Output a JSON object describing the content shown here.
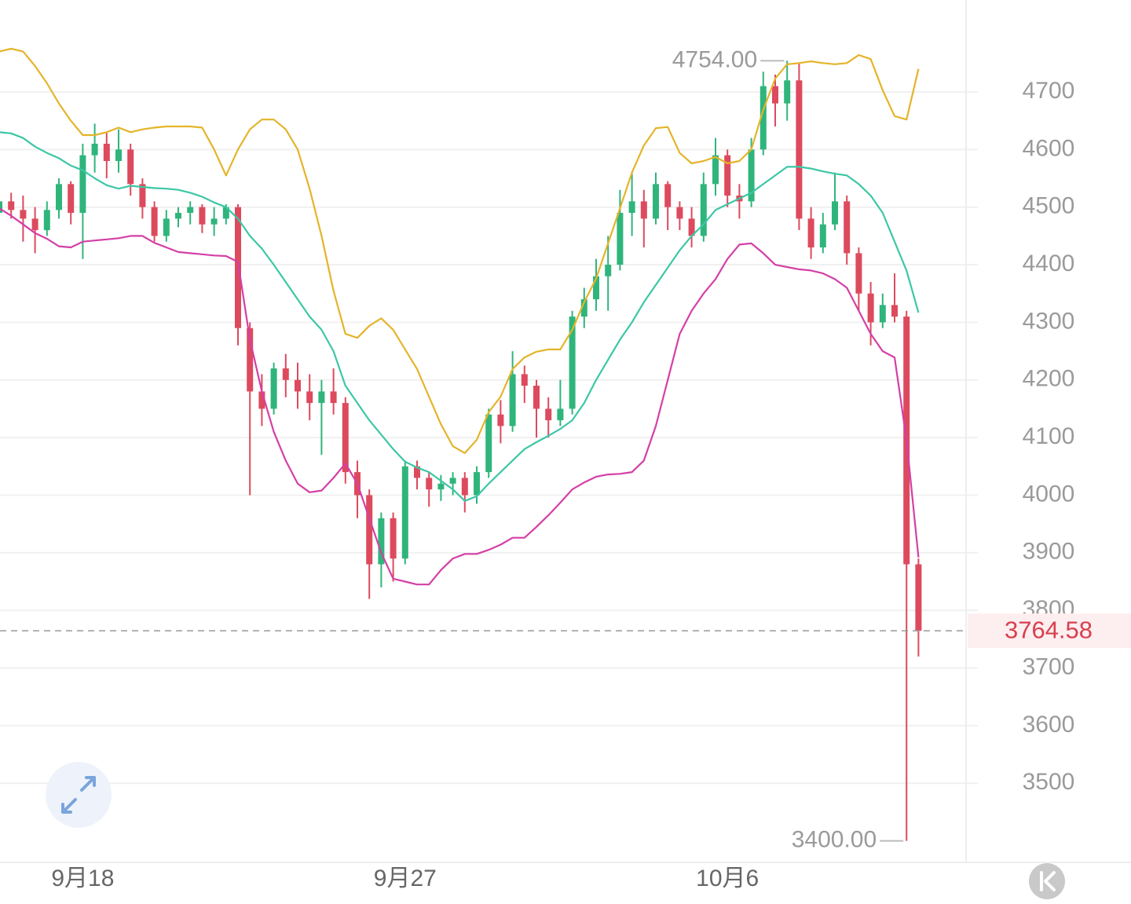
{
  "chart_data": {
    "type": "candlestick",
    "categories": [
      null,
      null,
      null,
      null,
      null,
      null,
      null,
      "9月18",
      null,
      null,
      null,
      null,
      null,
      null,
      null,
      null,
      null,
      null,
      null,
      null,
      null,
      null,
      null,
      null,
      null,
      null,
      null,
      null,
      null,
      null,
      null,
      null,
      null,
      null,
      "9月27",
      null,
      null,
      null,
      null,
      null,
      null,
      null,
      null,
      null,
      null,
      null,
      null,
      null,
      null,
      null,
      null,
      null,
      null,
      null,
      null,
      null,
      null,
      null,
      null,
      null,
      null,
      "10月6",
      null,
      null,
      null,
      null,
      null,
      null,
      null,
      null,
      null,
      null,
      null,
      null,
      null,
      null,
      null,
      null
    ],
    "open": [
      4490,
      4510,
      4495,
      4480,
      4460,
      4495,
      4540,
      4490,
      4590,
      4610,
      4580,
      4600,
      4540,
      4500,
      4450,
      4480,
      4490,
      4500,
      4470,
      4480,
      4500,
      4290,
      4180,
      4150,
      4220,
      4200,
      4180,
      4160,
      4180,
      4160,
      4040,
      4000,
      3880,
      3960,
      3890,
      4050,
      4030,
      4010,
      4020,
      4030,
      4000,
      4040,
      4140,
      4120,
      4210,
      4190,
      4150,
      4130,
      4150,
      4310,
      4340,
      4380,
      4400,
      4490,
      4510,
      4480,
      4540,
      4500,
      4480,
      4450,
      4540,
      4590,
      4520,
      4510,
      4600,
      4710,
      4680,
      4720,
      4480,
      4430,
      4470,
      4510,
      4420,
      4350,
      4300,
      4330,
      4310,
      3880
    ],
    "high": [
      4530,
      4525,
      4520,
      4500,
      4510,
      4550,
      4545,
      4610,
      4645,
      4630,
      4635,
      4610,
      4550,
      4510,
      4495,
      4500,
      4510,
      4505,
      4500,
      4505,
      4505,
      4300,
      4210,
      4230,
      4245,
      4230,
      4210,
      4200,
      4220,
      4170,
      4060,
      4010,
      3970,
      3970,
      4060,
      4060,
      4040,
      4035,
      4040,
      4040,
      4050,
      4150,
      4165,
      4250,
      4225,
      4200,
      4170,
      4200,
      4320,
      4360,
      4410,
      4450,
      4530,
      4560,
      4530,
      4560,
      4545,
      4510,
      4500,
      4560,
      4620,
      4600,
      4540,
      4620,
      4735,
      4730,
      4754,
      4750,
      4500,
      4490,
      4560,
      4520,
      4430,
      4370,
      4350,
      4385,
      4320,
      3890
    ],
    "low": [
      4470,
      4480,
      4440,
      4420,
      4450,
      4480,
      4470,
      4410,
      4560,
      4550,
      4560,
      4520,
      4480,
      4440,
      4440,
      4465,
      4470,
      4455,
      4450,
      4470,
      4260,
      4000,
      4120,
      4140,
      4170,
      4150,
      4130,
      4070,
      4140,
      4020,
      3960,
      3820,
      3840,
      3850,
      3880,
      4010,
      3980,
      3990,
      4000,
      3970,
      3985,
      4030,
      4090,
      4110,
      4160,
      4100,
      4100,
      4120,
      4140,
      4290,
      4320,
      4320,
      4390,
      4450,
      4430,
      4470,
      4460,
      4460,
      4430,
      4440,
      4520,
      4500,
      4480,
      4500,
      4590,
      4640,
      4650,
      4460,
      4410,
      4420,
      4460,
      4400,
      4320,
      4260,
      4290,
      4300,
      3400,
      3720
    ],
    "close": [
      4510,
      4495,
      4480,
      4460,
      4495,
      4540,
      4490,
      4590,
      4610,
      4580,
      4600,
      4540,
      4500,
      4450,
      4480,
      4490,
      4500,
      4470,
      4480,
      4500,
      4290,
      4180,
      4150,
      4220,
      4200,
      4180,
      4160,
      4180,
      4160,
      4040,
      4000,
      3880,
      3960,
      3890,
      4050,
      4030,
      4010,
      4020,
      4030,
      4000,
      4040,
      4140,
      4120,
      4210,
      4190,
      4150,
      4130,
      4150,
      4310,
      4340,
      4380,
      4400,
      4490,
      4510,
      4480,
      4540,
      4500,
      4480,
      4450,
      4540,
      4590,
      4520,
      4510,
      4600,
      4710,
      4680,
      4720,
      4480,
      4430,
      4470,
      4510,
      4420,
      4350,
      4300,
      4330,
      4310,
      3880,
      3764.58
    ],
    "up_color": "#2fb57c",
    "down_color": "#dd4a5e",
    "bands": [
      {
        "color": "#e4b42a",
        "values": [
          4770,
          4775,
          4770,
          4745,
          4715,
          4680,
          4650,
          4625,
          4625,
          4630,
          4638,
          4630,
          4635,
          4638,
          4640,
          4640,
          4640,
          4638,
          4600,
          4555,
          4600,
          4635,
          4652,
          4652,
          4635,
          4600,
          4532,
          4450,
          4355,
          4280,
          4273,
          4294,
          4307,
          4287,
          4253,
          4219,
          4171,
          4123,
          4085,
          4073,
          4096,
          4144,
          4171,
          4219,
          4239,
          4249,
          4253,
          4253,
          4287,
          4335,
          4376,
          4437,
          4498,
          4560,
          4607,
          4637,
          4639,
          4594,
          4576,
          4580,
          4587,
          4576,
          4580,
          4600,
          4669,
          4723,
          4748,
          4750,
          4753,
          4750,
          4748,
          4750,
          4764,
          4757,
          4703,
          4658,
          4652,
          4740
        ]
      },
      {
        "color": "#3cc7a5",
        "values": [
          4630,
          4628,
          4620,
          4605,
          4594,
          4585,
          4572,
          4564,
          4550,
          4538,
          4532,
          4537,
          4535,
          4533,
          4532,
          4530,
          4525,
          4518,
          4508,
          4500,
          4480,
          4450,
          4428,
          4400,
          4370,
          4340,
          4310,
          4287,
          4250,
          4190,
          4160,
          4130,
          4105,
          4080,
          4058,
          4048,
          4040,
          4025,
          4010,
          3990,
          3998,
          4020,
          4040,
          4060,
          4080,
          4092,
          4103,
          4115,
          4130,
          4160,
          4200,
          4235,
          4270,
          4300,
          4335,
          4365,
          4395,
          4425,
          4450,
          4470,
          4495,
          4505,
          4515,
          4525,
          4540,
          4555,
          4570,
          4570,
          4567,
          4562,
          4558,
          4555,
          4540,
          4520,
          4490,
          4440,
          4390,
          4317
        ]
      },
      {
        "color": "#d43fa6",
        "values": [
          4498,
          4485,
          4470,
          4455,
          4445,
          4432,
          4430,
          4440,
          4442,
          4444,
          4446,
          4450,
          4450,
          4438,
          4430,
          4422,
          4420,
          4418,
          4416,
          4415,
          4405,
          4270,
          4180,
          4110,
          4060,
          4020,
          4005,
          4008,
          4030,
          4055,
          4020,
          3960,
          3900,
          3855,
          3850,
          3845,
          3845,
          3870,
          3890,
          3898,
          3898,
          3905,
          3914,
          3926,
          3926,
          3945,
          3965,
          3987,
          4010,
          4022,
          4032,
          4036,
          4037,
          4040,
          4060,
          4120,
          4200,
          4280,
          4320,
          4350,
          4375,
          4410,
          4435,
          4437,
          4420,
          4400,
          4396,
          4392,
          4390,
          4385,
          4375,
          4360,
          4320,
          4280,
          4250,
          4239,
          4096,
          3892
        ]
      }
    ],
    "ylim": [
      3362.6,
      4859.5
    ],
    "yticks": [
      3500,
      3600,
      3700,
      3800,
      3900,
      4000,
      4100,
      4200,
      4300,
      4400,
      4500,
      4600,
      4700
    ],
    "grid": true,
    "max_label": {
      "value": 4754,
      "label": "4754.00"
    },
    "min_label": {
      "value": 3400,
      "label": "3400.00"
    },
    "last_price": {
      "value": 3764.58,
      "label": "3764.58"
    }
  }
}
